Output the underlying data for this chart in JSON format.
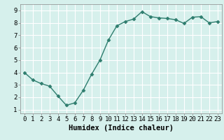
{
  "x": [
    0,
    1,
    2,
    3,
    4,
    5,
    6,
    7,
    8,
    9,
    10,
    11,
    12,
    13,
    14,
    15,
    16,
    17,
    18,
    19,
    20,
    21,
    22,
    23
  ],
  "y": [
    4.0,
    3.4,
    3.1,
    2.9,
    2.1,
    1.35,
    1.55,
    2.55,
    3.85,
    5.0,
    6.6,
    7.75,
    8.1,
    8.3,
    8.9,
    8.5,
    8.4,
    8.35,
    8.25,
    7.95,
    8.45,
    8.5,
    8.0,
    8.1
  ],
  "line_color": "#2e7d6e",
  "marker": "D",
  "marker_size": 2.5,
  "bg_color": "#d6f0ec",
  "grid_color": "#ffffff",
  "xlabel": "Humidex (Indice chaleur)",
  "xlim": [
    -0.5,
    23.5
  ],
  "ylim": [
    0.7,
    9.5
  ],
  "yticks": [
    1,
    2,
    3,
    4,
    5,
    6,
    7,
    8,
    9
  ],
  "xticks": [
    0,
    1,
    2,
    3,
    4,
    5,
    6,
    7,
    8,
    9,
    10,
    11,
    12,
    13,
    14,
    15,
    16,
    17,
    18,
    19,
    20,
    21,
    22,
    23
  ],
  "xtick_labels": [
    "0",
    "1",
    "2",
    "3",
    "4",
    "5",
    "6",
    "7",
    "8",
    "9",
    "10",
    "11",
    "12",
    "13",
    "14",
    "15",
    "16",
    "17",
    "18",
    "19",
    "20",
    "21",
    "22",
    "23"
  ],
  "tick_fontsize": 6.5,
  "xlabel_fontsize": 7.5,
  "linewidth": 1.0
}
